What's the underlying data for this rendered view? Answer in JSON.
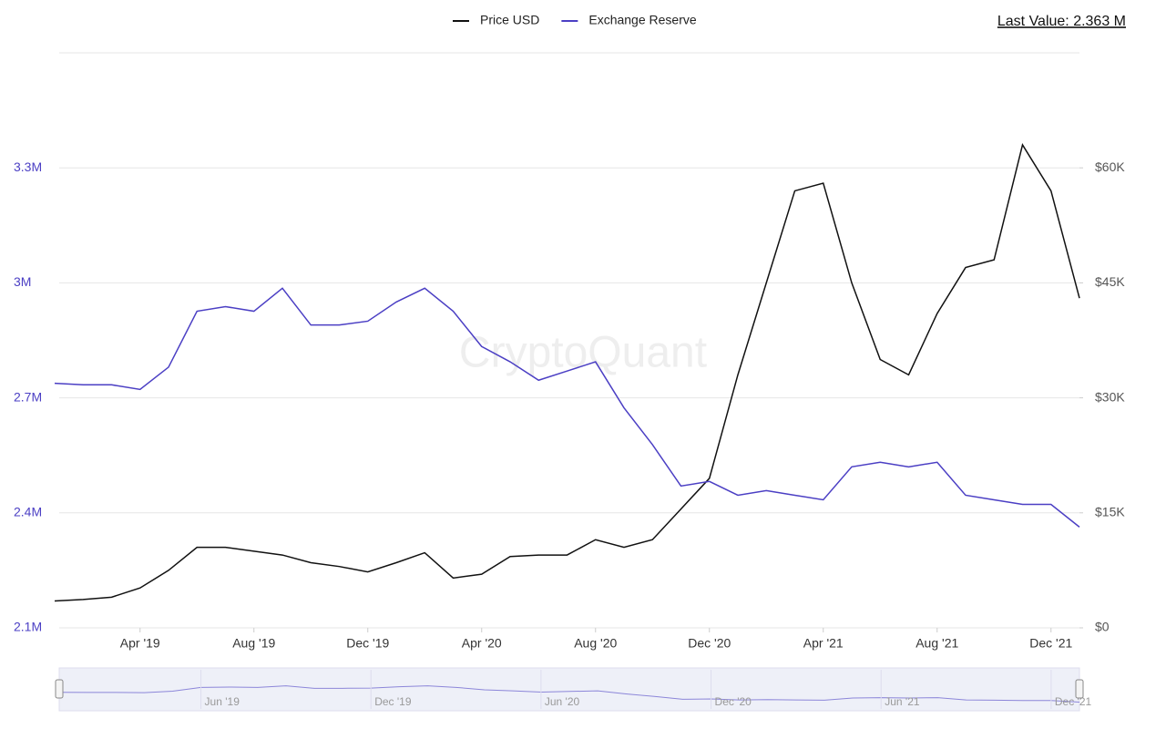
{
  "chart_data": {
    "type": "line",
    "last_value": "Last Value: 2.363 M",
    "watermark": "CryptoQuant",
    "x": [
      "2019-01",
      "2019-02",
      "2019-03",
      "2019-04",
      "2019-05",
      "2019-06",
      "2019-07",
      "2019-08",
      "2019-09",
      "2019-10",
      "2019-11",
      "2019-12",
      "2020-01",
      "2020-02",
      "2020-03",
      "2020-04",
      "2020-05",
      "2020-06",
      "2020-07",
      "2020-08",
      "2020-09",
      "2020-10",
      "2020-11",
      "2020-12",
      "2021-01",
      "2021-02",
      "2021-03",
      "2021-04",
      "2021-05",
      "2021-06",
      "2021-07",
      "2021-08",
      "2021-09",
      "2021-10",
      "2021-11",
      "2021-12",
      "2022-01"
    ],
    "xlim": [
      "2019-01",
      "2022-01"
    ],
    "xticks": [
      {
        "value": "2019-04",
        "label": "Apr '19"
      },
      {
        "value": "2019-08",
        "label": "Aug '19"
      },
      {
        "value": "2019-12",
        "label": "Dec '19"
      },
      {
        "value": "2020-04",
        "label": "Apr '20"
      },
      {
        "value": "2020-08",
        "label": "Aug '20"
      },
      {
        "value": "2020-12",
        "label": "Dec '20"
      },
      {
        "value": "2021-04",
        "label": "Apr '21"
      },
      {
        "value": "2021-08",
        "label": "Aug '21"
      },
      {
        "value": "2021-12",
        "label": "Dec '21"
      }
    ],
    "series": [
      {
        "name": "Price USD",
        "color": "#111111",
        "axis": "y2",
        "values": [
          3500,
          3700,
          4000,
          5200,
          7500,
          10500,
          10500,
          10000,
          9500,
          8500,
          8000,
          7300,
          8500,
          9800,
          6500,
          7000,
          9300,
          9500,
          9500,
          11500,
          10500,
          11500,
          15500,
          19500,
          33000,
          45000,
          57000,
          58000,
          45000,
          35000,
          33000,
          41000,
          47000,
          48000,
          63000,
          57000,
          43000
        ]
      },
      {
        "name": "Exchange Reserve",
        "color": "#4b3fc4",
        "axis": "y",
        "values": [
          2738000,
          2734000,
          2734000,
          2722000,
          2780000,
          2926000,
          2938000,
          2926000,
          2986000,
          2890000,
          2890000,
          2900000,
          2950000,
          2986000,
          2926000,
          2834000,
          2794000,
          2746000,
          2770000,
          2794000,
          2674000,
          2578000,
          2470000,
          2482000,
          2446000,
          2458000,
          2446000,
          2434000,
          2520000,
          2532000,
          2520000,
          2532000,
          2446000,
          2434000,
          2422000,
          2422000,
          2363000
        ]
      }
    ],
    "ylim": [
      2100000,
      3600000
    ],
    "yticks": [
      {
        "value": 2100000,
        "label": "2.1M"
      },
      {
        "value": 2400000,
        "label": "2.4M"
      },
      {
        "value": 2700000,
        "label": "2.7M"
      },
      {
        "value": 3000000,
        "label": "3M"
      },
      {
        "value": 3300000,
        "label": "3.3M"
      }
    ],
    "y2lim": [
      0,
      75000
    ],
    "y2ticks": [
      {
        "value": 0,
        "label": "$0"
      },
      {
        "value": 15000,
        "label": "$15K"
      },
      {
        "value": 30000,
        "label": "$30K"
      },
      {
        "value": 45000,
        "label": "$45K"
      },
      {
        "value": 60000,
        "label": "$60K"
      }
    ],
    "grid": true,
    "navigator_ticks": [
      {
        "value": "2019-06",
        "label": "Jun '19"
      },
      {
        "value": "2019-12",
        "label": "Dec '19"
      },
      {
        "value": "2020-06",
        "label": "Jun '20"
      },
      {
        "value": "2020-12",
        "label": "Dec '20"
      },
      {
        "value": "2021-06",
        "label": "Jun '21"
      },
      {
        "value": "2021-12",
        "label": "Dec '21"
      }
    ]
  }
}
